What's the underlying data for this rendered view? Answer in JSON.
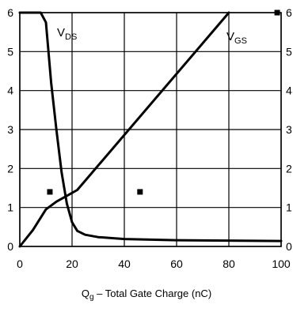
{
  "chart_data": {
    "type": "line",
    "xlabel": {
      "symbol": "Q",
      "sub": "g",
      "text": " – Total Gate Charge (nC)"
    },
    "xlim": [
      0,
      100
    ],
    "ylim": [
      0,
      6
    ],
    "x_ticks": [
      "0",
      "20",
      "40",
      "60",
      "80",
      "100"
    ],
    "y_ticks": [
      "0",
      "1",
      "2",
      "3",
      "4",
      "5",
      "6"
    ],
    "grid": true,
    "series": [
      {
        "name": "VDS",
        "label_main": "V",
        "label_sub": "DS",
        "points": [
          [
            0,
            6
          ],
          [
            8,
            6
          ],
          [
            10,
            5.75
          ],
          [
            12,
            4.2
          ],
          [
            14,
            3.0
          ],
          [
            16,
            1.9
          ],
          [
            18,
            1.1
          ],
          [
            20,
            0.62
          ],
          [
            22,
            0.4
          ],
          [
            25,
            0.3
          ],
          [
            30,
            0.24
          ],
          [
            40,
            0.19
          ],
          [
            60,
            0.16
          ],
          [
            80,
            0.15
          ],
          [
            100,
            0.14
          ]
        ]
      },
      {
        "name": "VGS",
        "label_main": "V",
        "label_sub": "GS",
        "points": [
          [
            0,
            0
          ],
          [
            5,
            0.42
          ],
          [
            10,
            0.95
          ],
          [
            14,
            1.15
          ],
          [
            18,
            1.3
          ],
          [
            22,
            1.45
          ],
          [
            80,
            6
          ]
        ]
      }
    ],
    "markers": [
      [
        11.5,
        1.4
      ],
      [
        46,
        1.4
      ],
      [
        98.5,
        6
      ]
    ]
  }
}
